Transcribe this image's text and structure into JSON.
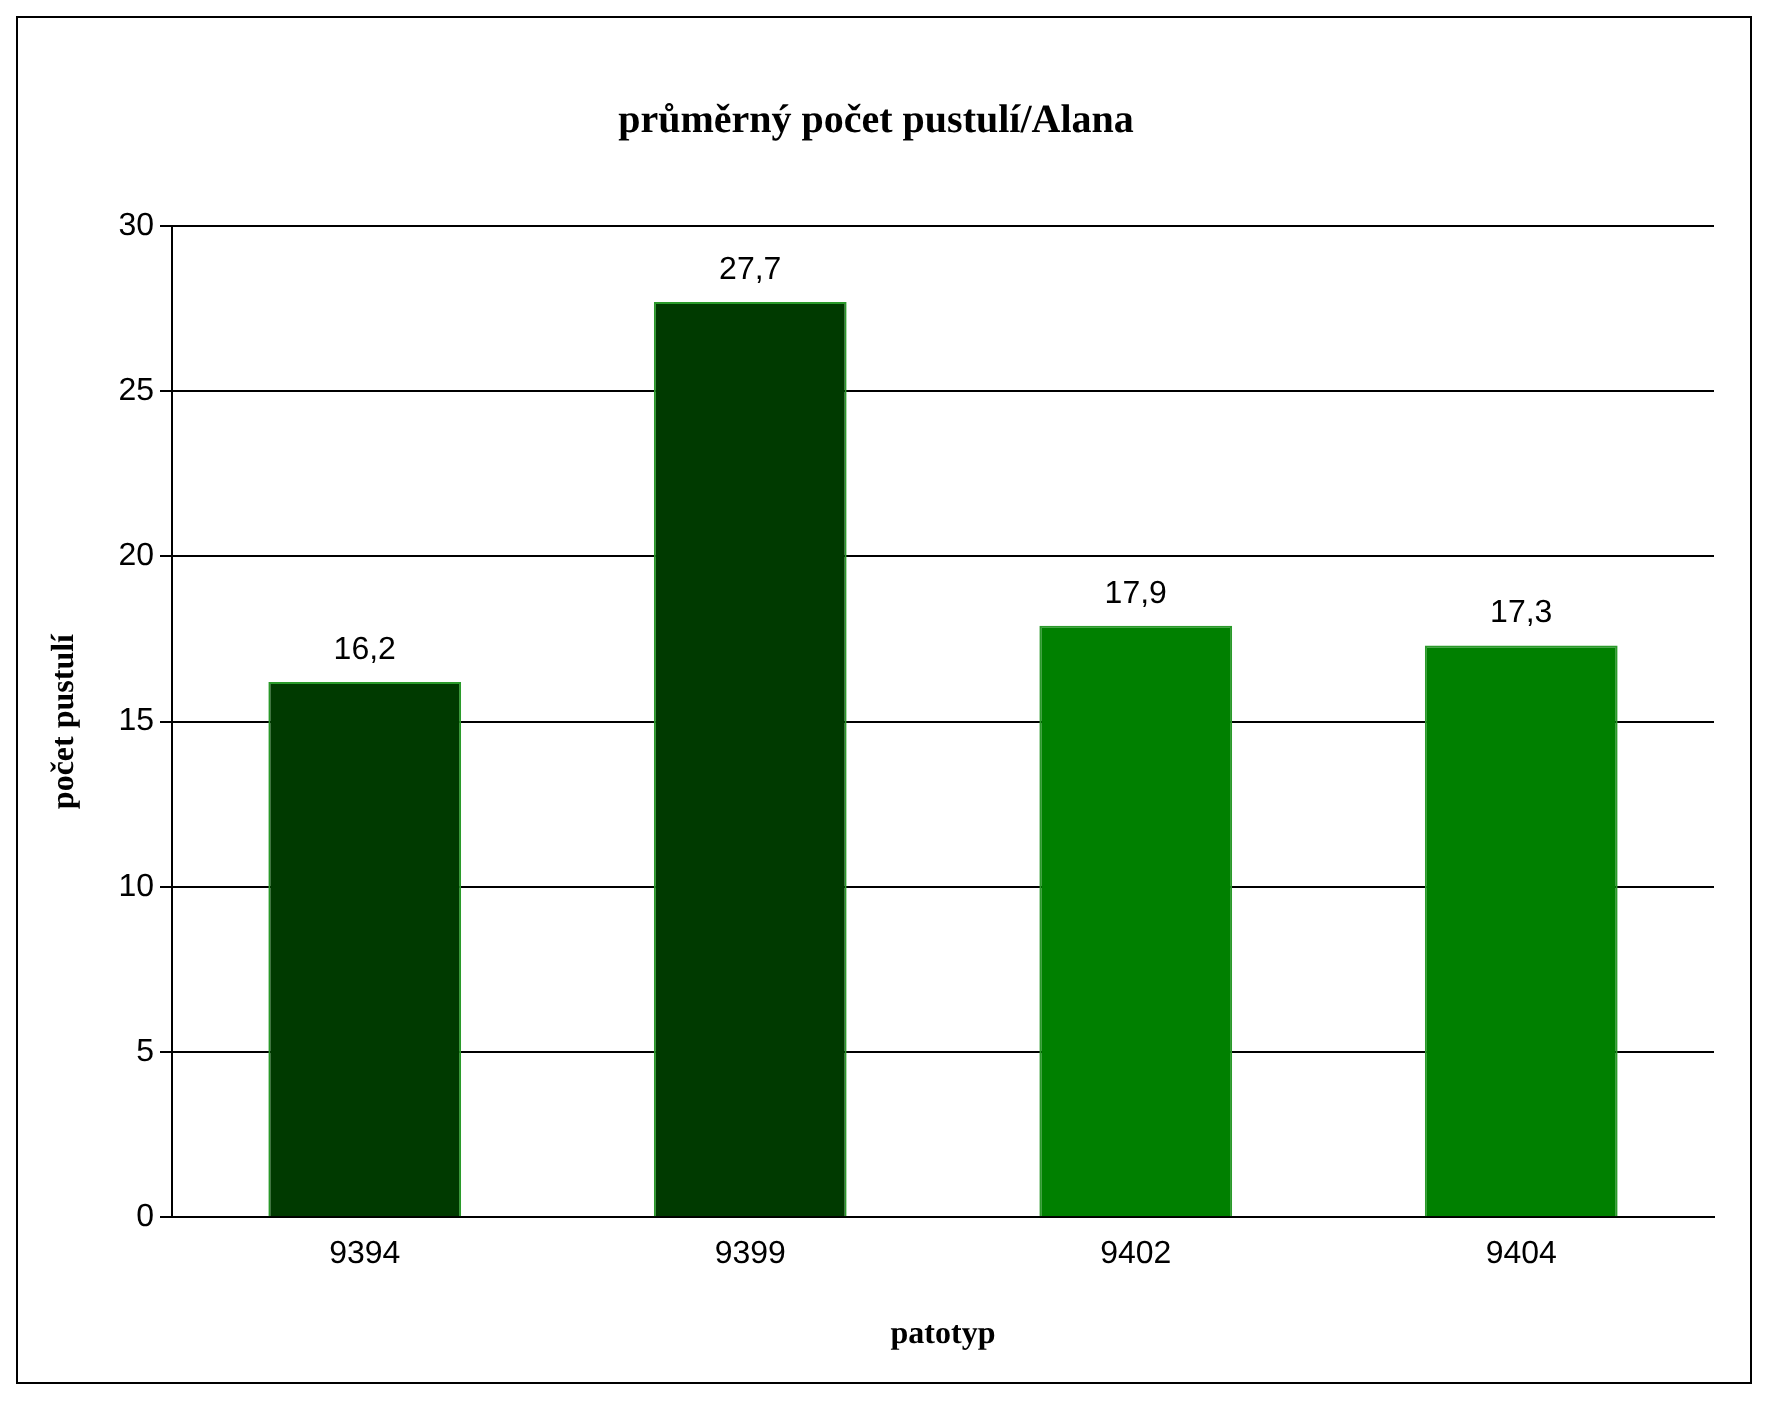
{
  "chart_data": {
    "type": "bar",
    "title": "průměrný počet pustulí/Alana",
    "xlabel": "patotyp",
    "ylabel": "počet pustulí",
    "categories": [
      "9394",
      "9399",
      "9402",
      "9404"
    ],
    "values": [
      16.2,
      27.7,
      17.9,
      17.3
    ],
    "value_labels": [
      "16,2",
      "27,7",
      "17,9",
      "17,3"
    ],
    "colors": [
      "#003a00",
      "#003a00",
      "#008000",
      "#008000"
    ],
    "ylim": [
      0,
      30
    ],
    "yticks": [
      0,
      5,
      10,
      15,
      20,
      25,
      30
    ],
    "grid": "y",
    "legend": false
  }
}
